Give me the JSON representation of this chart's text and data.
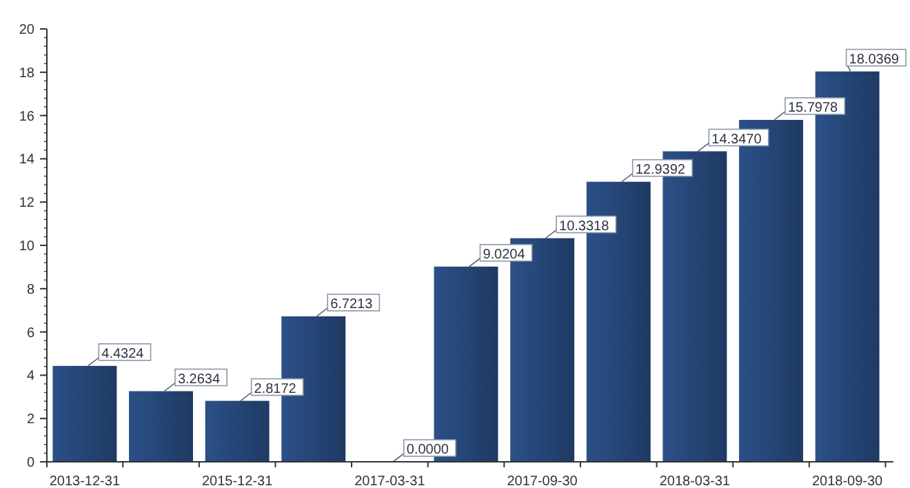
{
  "chart_data": {
    "type": "bar",
    "categories": [
      "2013-12-31",
      null,
      "2015-12-31",
      null,
      "2017-03-31",
      null,
      "2017-09-30",
      null,
      "2018-03-31",
      null,
      "2018-09-30"
    ],
    "values": [
      4.4324,
      3.2634,
      2.8172,
      6.7213,
      0.0,
      9.0204,
      10.3318,
      12.9392,
      14.347,
      15.7978,
      18.0369
    ],
    "value_labels": [
      "4.4324",
      "3.2634",
      "2.8172",
      "6.7213",
      "0.0000",
      "9.0204",
      "10.3318",
      "12.9392",
      "14.3470",
      "15.7978",
      "18.0369"
    ],
    "color": "#1f3a63",
    "ylim": [
      0,
      20
    ],
    "yticks": [
      0,
      2,
      4,
      6,
      8,
      10,
      12,
      14,
      16,
      18,
      20
    ],
    "grid": false
  }
}
